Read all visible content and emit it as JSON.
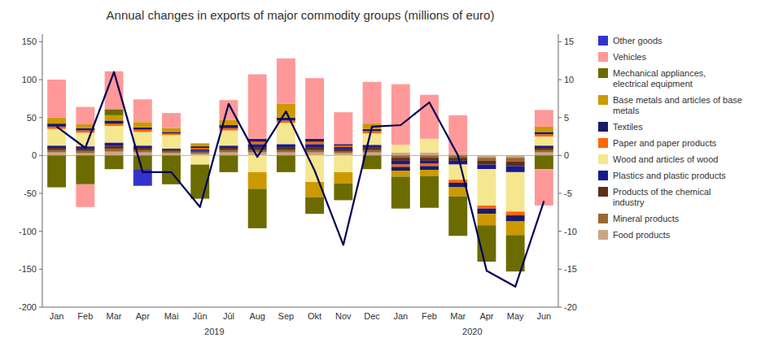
{
  "chart_data": {
    "type": "bar",
    "stacked": true,
    "grid": false,
    "legend": "right",
    "title": "Annual changes in exports of major commodity groups (millions of euro)",
    "categories": [
      "Jan",
      "Feb",
      "Mar",
      "Apr",
      "Mai",
      "Jūn",
      "Jūl",
      "Aug",
      "Sep",
      "Okt",
      "Nov",
      "Dec",
      "Jan",
      "Feb",
      "Mar",
      "Apr",
      "May",
      "Jun"
    ],
    "annotations": [
      "2019",
      "2020"
    ],
    "ylim": [
      -200,
      160
    ],
    "yticks": [
      -200,
      -150,
      -100,
      -50,
      0,
      50,
      100,
      150
    ],
    "y2lim": [
      -20,
      16
    ],
    "y2ticks": [
      -20,
      -15,
      -10,
      -5,
      0,
      5,
      10,
      15
    ],
    "series": [
      {
        "type": "bar",
        "name": "Food products",
        "color": "#C8A882",
        "values": [
          4,
          3,
          5,
          4,
          3,
          2,
          4,
          4,
          4,
          4,
          3,
          4,
          4,
          4,
          3,
          0,
          0,
          4
        ],
        "values_neg": [
          0,
          0,
          0,
          0,
          0,
          0,
          0,
          0,
          0,
          0,
          0,
          0,
          0,
          0,
          0,
          -3,
          -3,
          0
        ]
      },
      {
        "type": "bar",
        "name": "Mineral products",
        "color": "#996633",
        "values": [
          3,
          3,
          4,
          3,
          2,
          2,
          3,
          3,
          3,
          3,
          2,
          3,
          0,
          0,
          0,
          0,
          0,
          3
        ],
        "values_neg": [
          0,
          0,
          0,
          0,
          0,
          0,
          0,
          0,
          0,
          0,
          0,
          0,
          -3,
          -3,
          -3,
          -4,
          -5,
          0
        ]
      },
      {
        "type": "bar",
        "name": "Products of the chemical\nindustry",
        "color": "#5C3017",
        "values": [
          3,
          3,
          4,
          3,
          2,
          2,
          3,
          4,
          4,
          4,
          3,
          4,
          0,
          0,
          0,
          0,
          0,
          3
        ],
        "values_neg": [
          0,
          0,
          0,
          0,
          0,
          0,
          0,
          0,
          0,
          0,
          0,
          0,
          -4,
          -4,
          -4,
          -5,
          -6,
          0
        ]
      },
      {
        "type": "bar",
        "name": "Plastics and plastic products",
        "color": "#1A1A8C",
        "values": [
          3,
          3,
          4,
          3,
          2,
          2,
          3,
          4,
          4,
          4,
          3,
          3,
          0,
          0,
          0,
          0,
          0,
          3
        ],
        "values_neg": [
          0,
          0,
          0,
          0,
          0,
          0,
          0,
          0,
          0,
          0,
          0,
          0,
          -5,
          -4,
          -5,
          -6,
          -8,
          0
        ]
      },
      {
        "type": "bar",
        "name": "Wood and articles of wood",
        "color": "#F5E690",
        "values": [
          22,
          18,
          22,
          18,
          18,
          0,
          20,
          0,
          28,
          0,
          0,
          15,
          10,
          18,
          0,
          0,
          0,
          12
        ],
        "values_neg": [
          0,
          0,
          0,
          0,
          0,
          -12,
          0,
          -22,
          0,
          -35,
          -22,
          0,
          0,
          0,
          -20,
          -48,
          -52,
          0
        ]
      },
      {
        "type": "bar",
        "name": "Paper and paper products",
        "color": "#FF6600",
        "values": [
          3,
          3,
          3,
          3,
          2,
          2,
          3,
          3,
          3,
          3,
          2,
          3,
          0,
          0,
          0,
          0,
          0,
          3
        ],
        "values_neg": [
          0,
          0,
          0,
          0,
          0,
          0,
          0,
          0,
          0,
          0,
          0,
          0,
          -3,
          -3,
          -4,
          -4,
          -5,
          0
        ]
      },
      {
        "type": "bar",
        "name": "Textiles",
        "color": "#1A1A66",
        "values": [
          4,
          3,
          4,
          3,
          2,
          2,
          4,
          4,
          4,
          4,
          2,
          3,
          0,
          0,
          0,
          0,
          0,
          3
        ],
        "values_neg": [
          0,
          0,
          0,
          0,
          0,
          0,
          0,
          0,
          0,
          0,
          0,
          0,
          -5,
          -5,
          -6,
          -7,
          -8,
          0
        ]
      },
      {
        "type": "bar",
        "name": "Base metals and articles of base\nmetals",
        "color": "#CC9900",
        "values": [
          8,
          5,
          7,
          7,
          5,
          4,
          7,
          0,
          18,
          0,
          0,
          7,
          0,
          0,
          0,
          0,
          0,
          7
        ],
        "values_neg": [
          0,
          0,
          0,
          0,
          0,
          0,
          0,
          -22,
          0,
          -20,
          -15,
          0,
          -8,
          -8,
          -12,
          -15,
          -18,
          0
        ]
      },
      {
        "type": "bar",
        "name": "Mechanical appliances,\nelectrical equipment",
        "color": "#6B6B00",
        "values": [
          0,
          0,
          8,
          0,
          0,
          0,
          0,
          0,
          0,
          0,
          0,
          0,
          0,
          0,
          0,
          0,
          0,
          0
        ],
        "values_neg": [
          -42,
          -38,
          -18,
          -18,
          -38,
          -45,
          -22,
          -52,
          -22,
          -22,
          -22,
          -18,
          -42,
          -42,
          -52,
          -48,
          -48,
          -18
        ]
      },
      {
        "type": "bar",
        "name": "Vehicles",
        "color": "#FF9999",
        "values": [
          50,
          23,
          50,
          30,
          20,
          0,
          26,
          85,
          60,
          80,
          42,
          55,
          80,
          58,
          50,
          0,
          0,
          22
        ],
        "values_neg": [
          0,
          -30,
          0,
          0,
          0,
          0,
          0,
          0,
          0,
          0,
          0,
          0,
          0,
          0,
          0,
          0,
          0,
          -48
        ]
      },
      {
        "type": "bar",
        "name": "Other goods",
        "color": "#3333CC",
        "values": [
          0,
          0,
          0,
          0,
          0,
          0,
          0,
          0,
          0,
          0,
          0,
          0,
          0,
          0,
          0,
          0,
          0,
          0
        ],
        "values_neg": [
          0,
          0,
          0,
          -22,
          0,
          0,
          0,
          0,
          0,
          0,
          0,
          0,
          0,
          0,
          0,
          0,
          0,
          0
        ]
      },
      {
        "type": "line",
        "axis": "y2",
        "color": "#000055",
        "values": [
          3.8,
          1.0,
          11.0,
          -2.2,
          -2.2,
          -6.8,
          6.8,
          -0.2,
          5.8,
          -2.0,
          -11.8,
          3.8,
          4.0,
          7.0,
          0,
          -15.2,
          -17.3,
          -6.0
        ]
      }
    ]
  }
}
